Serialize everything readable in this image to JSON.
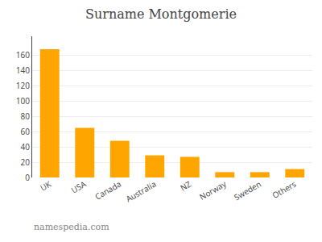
{
  "chart_data": {
    "type": "bar",
    "title": "Surname Montgomerie",
    "categories": [
      "UK",
      "USA",
      "Canada",
      "Australia",
      "NZ",
      "Norway",
      "Sweden",
      "Others"
    ],
    "values": [
      168,
      65,
      48,
      29,
      27,
      7,
      7,
      11
    ],
    "color": "#FFA500",
    "ylim": [
      0,
      185
    ],
    "yticks": [
      0,
      20,
      40,
      60,
      80,
      100,
      120,
      140,
      160
    ],
    "grid": true,
    "annotations": [
      "namespedia.com"
    ]
  }
}
